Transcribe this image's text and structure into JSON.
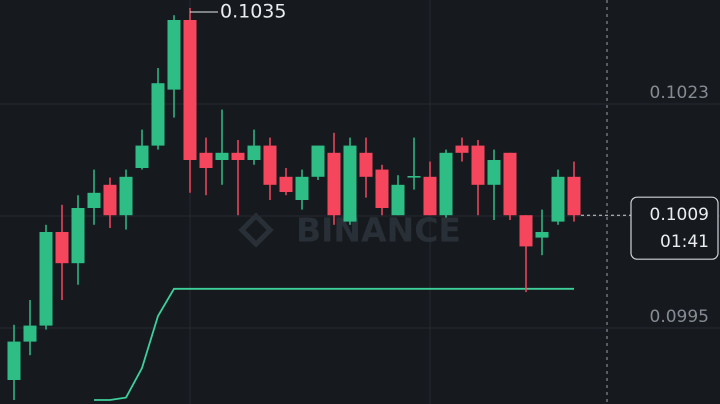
{
  "chart_data": {
    "type": "candlestick",
    "watermark": "BINANCE",
    "up_color": "#2ebd85",
    "down_color": "#f6465d",
    "open": [
      0.09885,
      0.09933,
      0.09953,
      0.1007,
      0.10031,
      0.101,
      0.10129,
      0.10091,
      0.1015,
      0.10178,
      0.10248,
      0.10335,
      0.10169,
      0.1016,
      0.10169,
      0.1016,
      0.10178,
      0.10139,
      0.1011,
      0.10139,
      0.10169,
      0.10083,
      0.10169,
      0.10148,
      0.10091,
      0.10138,
      0.10139,
      0.10091,
      0.10178,
      0.10178,
      0.10129,
      0.10169,
      0.10091,
      0.10063,
      0.10083,
      0.10139
    ],
    "high": [
      0.09954,
      0.09985,
      0.10079,
      0.10104,
      0.10116,
      0.10148,
      0.10138,
      0.10148,
      0.10198,
      0.10275,
      0.10341,
      0.1035,
      0.10188,
      0.10223,
      0.10185,
      0.10198,
      0.10188,
      0.1015,
      0.10148,
      0.10178,
      0.10194,
      0.10188,
      0.10188,
      0.10154,
      0.10141,
      0.10188,
      0.10158,
      0.10173,
      0.10188,
      0.10185,
      0.10173,
      0.10169,
      0.10091,
      0.10098,
      0.10148,
      0.10158
    ],
    "low": [
      0.0986,
      0.09916,
      0.09948,
      0.09985,
      0.10004,
      0.10079,
      0.10075,
      0.10073,
      0.10148,
      0.10173,
      0.10213,
      0.10119,
      0.10116,
      0.10129,
      0.10091,
      0.10154,
      0.1011,
      0.10116,
      0.10098,
      0.10135,
      0.10079,
      0.10079,
      0.10113,
      0.10091,
      0.10091,
      0.10123,
      0.10091,
      0.10088,
      0.10158,
      0.10091,
      0.10085,
      0.10085,
      0.09995,
      0.10041,
      0.10079,
      0.10083
    ],
    "close": [
      0.09933,
      0.09953,
      0.1007,
      0.10031,
      0.101,
      0.10119,
      0.10091,
      0.10139,
      0.10178,
      0.10256,
      0.10335,
      0.1016,
      0.1015,
      0.10169,
      0.1016,
      0.10178,
      0.10129,
      0.1012,
      0.10139,
      0.10178,
      0.10091,
      0.10178,
      0.10139,
      0.101,
      0.10129,
      0.1014,
      0.10091,
      0.10169,
      0.10169,
      0.10129,
      0.1016,
      0.10091,
      0.10052,
      0.1007,
      0.10139,
      0.10091
    ],
    "indicator": {
      "color": "#3fcf9a",
      "values": [
        null,
        null,
        null,
        null,
        null,
        0.0986,
        0.0986,
        0.09863,
        0.099,
        0.09965,
        0.09999,
        0.09999,
        0.09999,
        0.09999,
        0.09999,
        0.09999,
        0.09999,
        0.09999,
        0.09999,
        0.09999,
        0.09999,
        0.09999,
        0.09999,
        0.09999,
        0.09999,
        0.09999,
        0.09999,
        0.09999,
        0.09999,
        0.09999,
        0.09999,
        0.09999,
        0.09999,
        0.09999,
        0.09999,
        0.09999
      ]
    },
    "high_annotation": 0.1035,
    "last_price": {
      "value": 0.10091,
      "label": "0.1009"
    },
    "countdown": "01:41",
    "ylim": [
      0.09855,
      0.1036
    ],
    "yticks": [
      0.0995,
      0.1009,
      0.1023
    ],
    "grid": true
  }
}
